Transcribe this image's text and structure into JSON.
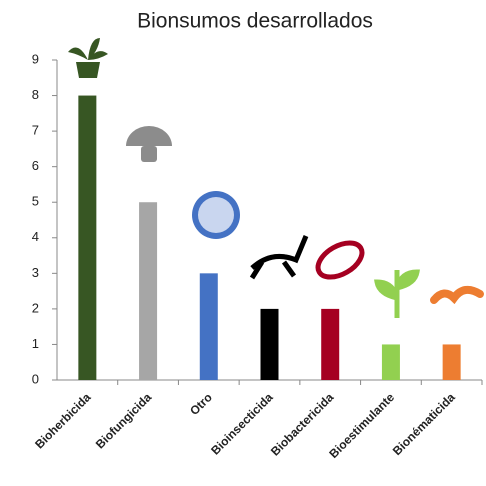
{
  "chart_data": {
    "type": "bar",
    "title": "Bionsumos desarrollados",
    "categories": [
      "Bioherbicida",
      "Biofungicida",
      "Otro",
      "Bioinsecticida",
      "Biobactericida",
      "Bioestimulante",
      "Bionématicida"
    ],
    "values": [
      8,
      5,
      3,
      2,
      2,
      1,
      1
    ],
    "colors": [
      "#375623",
      "#a6a6a6",
      "#4472c4",
      "#000000",
      "#a50021",
      "#92d050",
      "#ed7d31"
    ],
    "ylim": [
      0,
      9
    ],
    "yticks": [
      0,
      1,
      2,
      3,
      4,
      5,
      6,
      7,
      8,
      9
    ]
  }
}
